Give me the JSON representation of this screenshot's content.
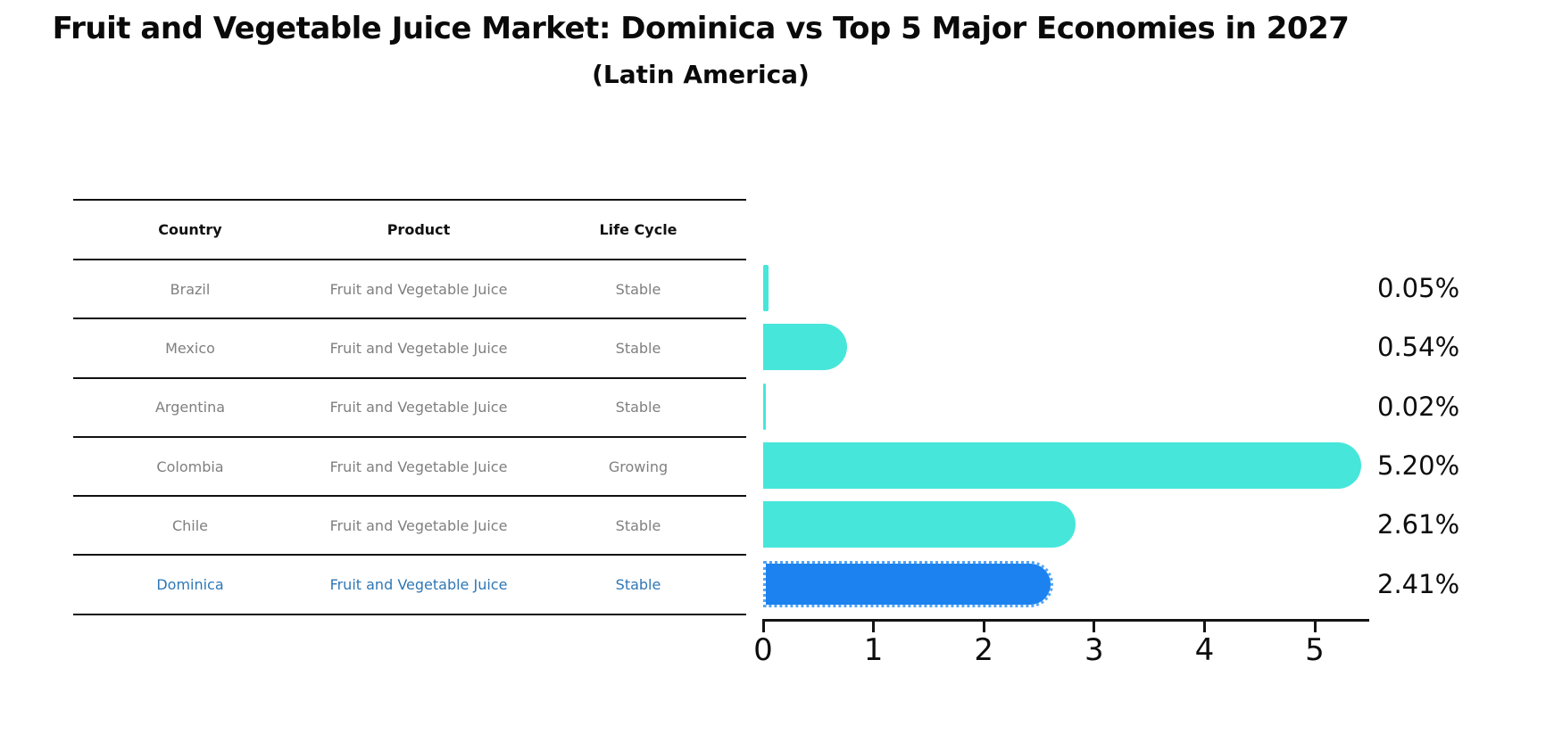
{
  "chart_data": {
    "type": "bar",
    "orientation": "horizontal",
    "title": "Fruit and Vegetable Juice Market: Dominica vs Top 5 Major Economies in 2027",
    "subtitle": "(Latin America)",
    "categories": [
      "Brazil",
      "Mexico",
      "Argentina",
      "Colombia",
      "Chile",
      "Dominica"
    ],
    "values": [
      0.05,
      0.54,
      0.02,
      5.2,
      2.61,
      2.41
    ],
    "value_labels": [
      "0.05%",
      "0.54%",
      "0.02%",
      "5.20%",
      "2.61%",
      "2.41%"
    ],
    "x_ticks": [
      "0",
      "1",
      "2",
      "3",
      "4",
      "5"
    ],
    "xlim": [
      0,
      5.45
    ],
    "grid": false,
    "legend": false,
    "bar_color": "#47e6da",
    "highlight": {
      "index": 5,
      "category": "Dominica",
      "bar_color": "#1b82ef",
      "edge_style": "dotted",
      "text_color": "#2e77b6"
    },
    "axis_color": "#141414"
  },
  "table": {
    "headers": [
      "Country",
      "Product",
      "Life Cycle"
    ],
    "rows": [
      {
        "country": "Brazil",
        "product": "Fruit and Vegetable Juice",
        "life_cycle": "Stable",
        "highlighted": false
      },
      {
        "country": "Mexico",
        "product": "Fruit and Vegetable Juice",
        "life_cycle": "Stable",
        "highlighted": false
      },
      {
        "country": "Argentina",
        "product": "Fruit and Vegetable Juice",
        "life_cycle": "Stable",
        "highlighted": false
      },
      {
        "country": "Colombia",
        "product": "Fruit and Vegetable Juice",
        "life_cycle": "Growing",
        "highlighted": false
      },
      {
        "country": "Chile",
        "product": "Fruit and Vegetable Juice",
        "life_cycle": "Stable",
        "highlighted": false
      },
      {
        "country": "Dominica",
        "product": "Fruit and Vegetable Juice",
        "life_cycle": "Stable",
        "highlighted": true
      }
    ]
  },
  "colors": {
    "background": "#ffffff",
    "table_line": "#111111",
    "table_text": "#7f7f7f",
    "header_text": "#111111",
    "value_label_text": "#0d0d0d"
  }
}
